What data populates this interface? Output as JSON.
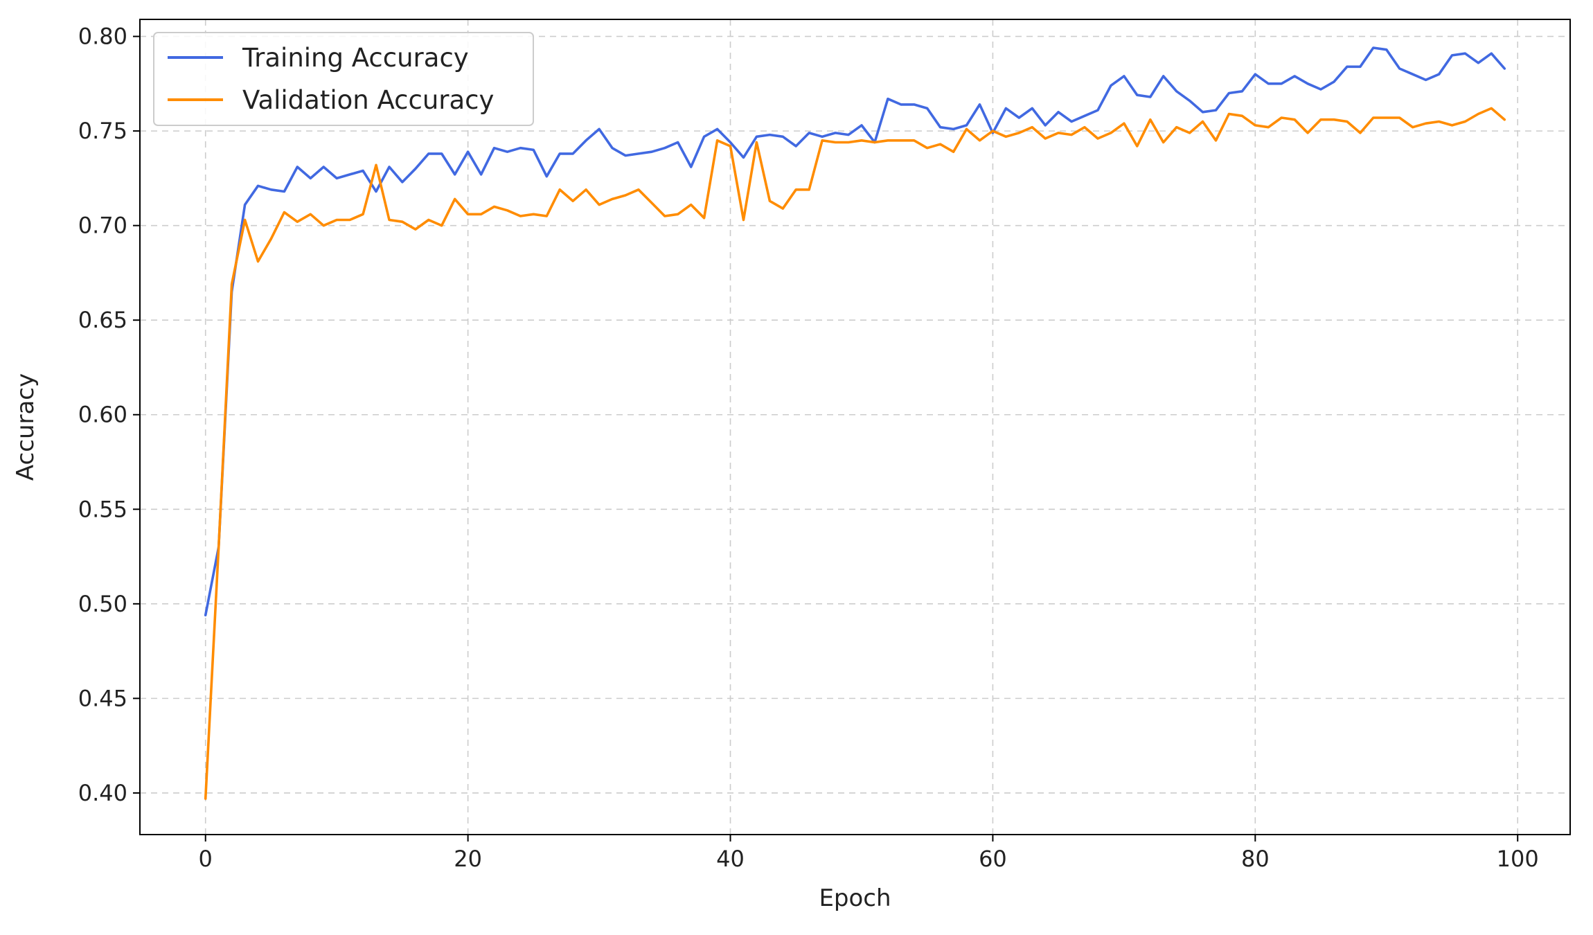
{
  "chart_data": {
    "type": "line",
    "title": "",
    "xlabel": "Epoch",
    "ylabel": "Accuracy",
    "xlim": [
      -5,
      104
    ],
    "ylim": [
      0.378,
      0.809
    ],
    "xticks": [
      0,
      20,
      40,
      60,
      80,
      100
    ],
    "xtick_labels": [
      "0",
      "20",
      "40",
      "60",
      "80",
      "100"
    ],
    "yticks": [
      0.4,
      0.45,
      0.5,
      0.55,
      0.6,
      0.65,
      0.7,
      0.75,
      0.8
    ],
    "ytick_labels": [
      "0.40",
      "0.45",
      "0.50",
      "0.55",
      "0.60",
      "0.65",
      "0.70",
      "0.75",
      "0.80"
    ],
    "grid": true,
    "legend_position": "upper-left",
    "x": [
      0,
      1,
      2,
      3,
      4,
      5,
      6,
      7,
      8,
      9,
      10,
      11,
      12,
      13,
      14,
      15,
      16,
      17,
      18,
      19,
      20,
      21,
      22,
      23,
      24,
      25,
      26,
      27,
      28,
      29,
      30,
      31,
      32,
      33,
      34,
      35,
      36,
      37,
      38,
      39,
      40,
      41,
      42,
      43,
      44,
      45,
      46,
      47,
      48,
      49,
      50,
      51,
      52,
      53,
      54,
      55,
      56,
      57,
      58,
      59,
      60,
      61,
      62,
      63,
      64,
      65,
      66,
      67,
      68,
      69,
      70,
      71,
      72,
      73,
      74,
      75,
      76,
      77,
      78,
      79,
      80,
      81,
      82,
      83,
      84,
      85,
      86,
      87,
      88,
      89,
      90,
      91,
      92,
      93,
      94,
      95,
      96,
      97,
      98,
      99
    ],
    "series": [
      {
        "name": "Training Accuracy",
        "color": "#4169e1",
        "values": [
          0.494,
          0.53,
          0.665,
          0.711,
          0.721,
          0.719,
          0.718,
          0.731,
          0.725,
          0.731,
          0.725,
          0.727,
          0.729,
          0.718,
          0.731,
          0.723,
          0.73,
          0.738,
          0.738,
          0.727,
          0.739,
          0.727,
          0.741,
          0.739,
          0.741,
          0.74,
          0.726,
          0.738,
          0.738,
          0.745,
          0.751,
          0.741,
          0.737,
          0.738,
          0.739,
          0.741,
          0.744,
          0.731,
          0.747,
          0.751,
          0.744,
          0.736,
          0.747,
          0.748,
          0.747,
          0.742,
          0.749,
          0.747,
          0.749,
          0.748,
          0.753,
          0.744,
          0.767,
          0.764,
          0.764,
          0.762,
          0.752,
          0.751,
          0.753,
          0.764,
          0.749,
          0.762,
          0.757,
          0.762,
          0.753,
          0.76,
          0.755,
          0.758,
          0.761,
          0.774,
          0.779,
          0.769,
          0.768,
          0.779,
          0.771,
          0.766,
          0.76,
          0.761,
          0.77,
          0.771,
          0.78,
          0.775,
          0.775,
          0.779,
          0.775,
          0.772,
          0.776,
          0.784,
          0.784,
          0.794,
          0.793,
          0.783,
          0.78,
          0.777,
          0.78,
          0.79,
          0.791,
          0.786,
          0.791,
          0.783
        ]
      },
      {
        "name": "Validation Accuracy",
        "color": "#ff8c00",
        "values": [
          0.397,
          0.53,
          0.669,
          0.703,
          0.681,
          0.693,
          0.707,
          0.702,
          0.706,
          0.7,
          0.703,
          0.703,
          0.706,
          0.732,
          0.703,
          0.702,
          0.698,
          0.703,
          0.7,
          0.714,
          0.706,
          0.706,
          0.71,
          0.708,
          0.705,
          0.706,
          0.705,
          0.719,
          0.713,
          0.719,
          0.711,
          0.714,
          0.716,
          0.719,
          0.712,
          0.705,
          0.706,
          0.711,
          0.704,
          0.745,
          0.742,
          0.703,
          0.744,
          0.713,
          0.709,
          0.719,
          0.719,
          0.745,
          0.744,
          0.744,
          0.745,
          0.744,
          0.745,
          0.745,
          0.745,
          0.741,
          0.743,
          0.739,
          0.751,
          0.745,
          0.75,
          0.747,
          0.749,
          0.752,
          0.746,
          0.749,
          0.748,
          0.752,
          0.746,
          0.749,
          0.754,
          0.742,
          0.756,
          0.744,
          0.752,
          0.749,
          0.755,
          0.745,
          0.759,
          0.758,
          0.753,
          0.752,
          0.757,
          0.756,
          0.749,
          0.756,
          0.756,
          0.755,
          0.749,
          0.757,
          0.757,
          0.757,
          0.752,
          0.754,
          0.755,
          0.753,
          0.755,
          0.759,
          0.762,
          0.756
        ]
      }
    ]
  }
}
